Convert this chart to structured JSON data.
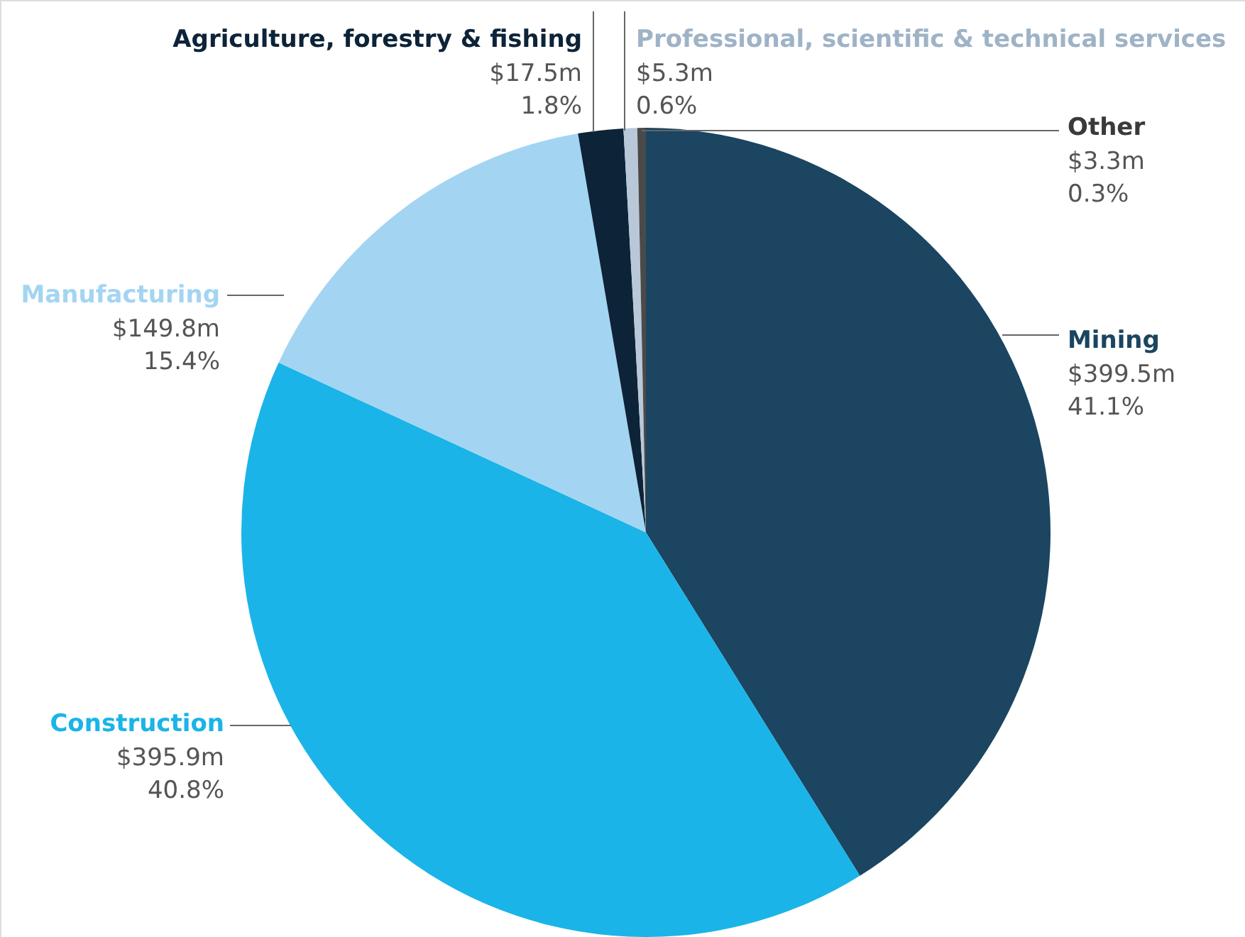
{
  "chart_data": {
    "type": "pie",
    "categories": [
      "Mining",
      "Construction",
      "Manufacturing",
      "Agriculture, forestry & fishing",
      "Professional, scientific & technical services",
      "Other"
    ],
    "values": [
      399.5,
      395.9,
      149.8,
      17.5,
      5.3,
      3.3
    ],
    "colors": [
      "#1b4560",
      "#1ab4e8",
      "#a3d5f2",
      "#0d2338",
      "#b8c8d8",
      "#4a4a4a"
    ],
    "value_labels": [
      "$399.5m",
      "$395.9m",
      "$149.8m",
      "$17.5m",
      "$5.3m",
      "$3.3m"
    ],
    "annotations": [
      "41.1%",
      "40.8%",
      "15.4%",
      "1.8%",
      "0.6%",
      "0.3%"
    ]
  }
}
